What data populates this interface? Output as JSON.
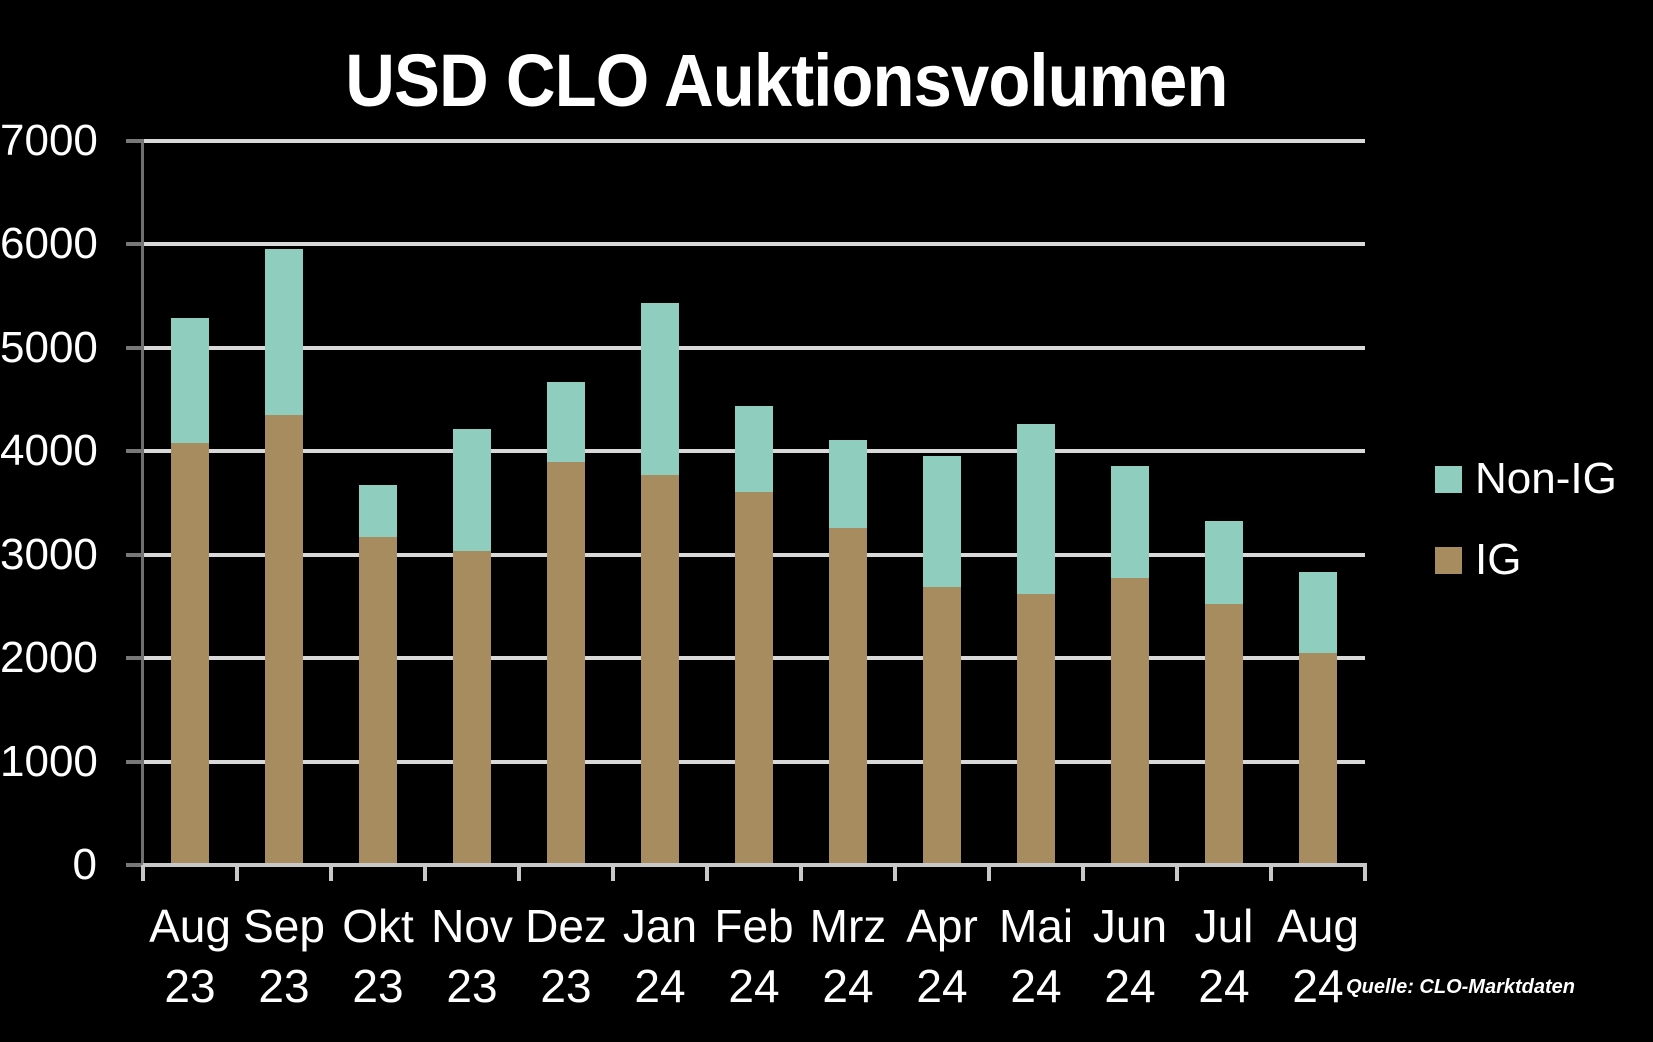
{
  "page": {
    "background": "#000000",
    "text_color": "#FFFFFF"
  },
  "title": "USD CLO Auktionsvolumen",
  "source_note": "Quelle: CLO-Marktdaten",
  "legend": {
    "position": "right",
    "items": [
      {
        "label": "Non-IG",
        "color": "#8FCDBF"
      },
      {
        "label": "IG",
        "color": "#A68C5F"
      }
    ]
  },
  "chart_data": {
    "type": "bar",
    "stacked": true,
    "title": "USD CLO Auktionsvolumen",
    "categories": [
      "Aug 23",
      "Sep 23",
      "Okt 23",
      "Nov 23",
      "Dez 23",
      "Jan 24",
      "Feb 24",
      "Mrz 24",
      "Apr 24",
      "Mai 24",
      "Jun 24",
      "Jul 24",
      "Aug 24"
    ],
    "x_labels_line1": [
      "Aug",
      "Sep",
      "Okt",
      "Nov",
      "Dez",
      "Jan",
      "Feb",
      "Mrz",
      "Apr",
      "Mai",
      "Jun",
      "Jul",
      "Aug"
    ],
    "x_labels_line2": [
      "23",
      "23",
      "23",
      "23",
      "23",
      "24",
      "24",
      "24",
      "24",
      "24",
      "24",
      "24",
      "24"
    ],
    "series": [
      {
        "name": "IG",
        "color": "#A68C5F",
        "values": [
          4080,
          4350,
          3170,
          3040,
          3900,
          3770,
          3610,
          3260,
          2690,
          2620,
          2770,
          2520,
          2050
        ]
      },
      {
        "name": "Non-IG",
        "color": "#8FCDBF",
        "values": [
          1210,
          1610,
          500,
          1180,
          770,
          1660,
          830,
          850,
          1260,
          1640,
          1090,
          810,
          780
        ]
      }
    ],
    "stack_totals": [
      5290,
      5960,
      3670,
      4220,
      4670,
      5430,
      4440,
      4110,
      3950,
      4260,
      3860,
      3330,
      2830
    ],
    "ylim": [
      0,
      7000
    ],
    "yticks": [
      0,
      1000,
      2000,
      3000,
      4000,
      5000,
      6000,
      7000
    ],
    "grid": true,
    "legend_position": "right",
    "gridline_color": "#D9D9D9",
    "y_axis_color": "#6F6F6F",
    "x_axis_color": "#C8C8C8"
  }
}
